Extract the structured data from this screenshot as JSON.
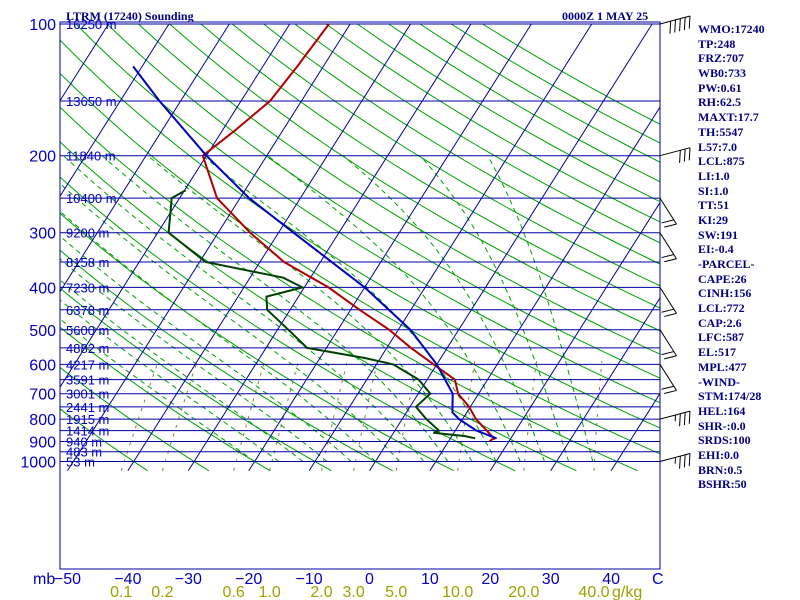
{
  "header": {
    "title": "LTRM (17240) Sounding",
    "time": "0000Z  1 MAY 25"
  },
  "indices": [
    "WMO:17240",
    "TP:248",
    "FRZ:707",
    "WB0:733",
    "PW:0.61",
    "RH:62.5",
    "MAXT:17.7",
    "TH:5547",
    "L57:7.0",
    "LCL:875",
    "LI:1.0",
    "SI:1.0",
    "TT:51",
    "KI:29",
    "SW:191",
    "EI:-0.4",
    "-PARCEL-",
    "CAPE:26",
    "CINH:156",
    "LCL:772",
    "CAP:2.6",
    "LFC:587",
    "EL:517",
    "MPL:477",
    "-WIND-",
    "STM:174/28",
    "HEL:164",
    "SHR-:0.0",
    "SRDS:100",
    "EHI:0.0",
    "BRN:0.5",
    "BSHR:50"
  ],
  "colors": {
    "isobar": "#0000a0",
    "isotherm": "#0000a0",
    "dry_adiabat": "#00a000",
    "moist_adiabat": "#00a000",
    "mixing_ratio": "#808040",
    "temperature": "#b00000",
    "dewpoint": "#004000",
    "parcel": "#0000c0",
    "wind": "#000000"
  },
  "chart_data": {
    "type": "skew-t",
    "title": "LTRM (17240) Sounding",
    "valid_time": "0000Z  1 MAY 25",
    "pressure_axis_unit": "mb",
    "pressure_levels": [
      100,
      200,
      300,
      400,
      500,
      600,
      700,
      800,
      900,
      1000
    ],
    "pressure_range": [
      1050,
      100
    ],
    "temperature_axis": {
      "ticks": [
        -50,
        -40,
        -30,
        -20,
        -10,
        0,
        10,
        20,
        30,
        40
      ],
      "unit": "C"
    },
    "mixing_ratio_axis": {
      "labels": [
        "0.1",
        "0.2",
        "0.6",
        "1.0",
        "2.0",
        "3.0",
        "5.0",
        "10.0",
        "20.0",
        "40.0"
      ],
      "values": [
        0.1,
        0.2,
        0.6,
        1.0,
        2.0,
        3.0,
        5.0,
        10.0,
        20.0,
        40.0
      ],
      "unit": "g/kg"
    },
    "height_labels": [
      {
        "p": 100,
        "label": "16250 m"
      },
      {
        "p": 150,
        "label": "13650 m"
      },
      {
        "p": 200,
        "label": "11840 m"
      },
      {
        "p": 250,
        "label": "10400 m"
      },
      {
        "p": 300,
        "label": "9200 m"
      },
      {
        "p": 350,
        "label": "8158 m"
      },
      {
        "p": 400,
        "label": "7230 m"
      },
      {
        "p": 450,
        "label": "6378 m"
      },
      {
        "p": 500,
        "label": "5600 m"
      },
      {
        "p": 550,
        "label": "4882 m"
      },
      {
        "p": 600,
        "label": "4217 m"
      },
      {
        "p": 650,
        "label": "3591 m"
      },
      {
        "p": 700,
        "label": "3001 m"
      },
      {
        "p": 750,
        "label": "2441 m"
      },
      {
        "p": 800,
        "label": "1915 m"
      },
      {
        "p": 850,
        "label": "1414 m"
      },
      {
        "p": 900,
        "label": "940 m"
      },
      {
        "p": 950,
        "label": "483 m"
      },
      {
        "p": 1000,
        "label": "53 m"
      }
    ],
    "series": [
      {
        "name": "Temperature",
        "points": [
          {
            "p": 100,
            "t": -53.5
          },
          {
            "p": 125,
            "t": -54.3
          },
          {
            "p": 150,
            "t": -55.2
          },
          {
            "p": 175,
            "t": -57.9
          },
          {
            "p": 200,
            "t": -60.6
          },
          {
            "p": 250,
            "t": -53.8
          },
          {
            "p": 300,
            "t": -44.7
          },
          {
            "p": 350,
            "t": -36.0
          },
          {
            "p": 400,
            "t": -26.0
          },
          {
            "p": 450,
            "t": -18.5
          },
          {
            "p": 500,
            "t": -11.5
          },
          {
            "p": 550,
            "t": -6.0
          },
          {
            "p": 600,
            "t": -0.5
          },
          {
            "p": 650,
            "t": 4.6
          },
          {
            "p": 700,
            "t": 6.6
          },
          {
            "p": 750,
            "t": 9.8
          },
          {
            "p": 800,
            "t": 12.2
          },
          {
            "p": 850,
            "t": 15.2
          },
          {
            "p": 875,
            "t": 16.6
          },
          {
            "p": 885,
            "t": 17.4
          },
          {
            "p": 890,
            "t": 17.0
          },
          {
            "p": 900,
            "t": 16.8
          }
        ]
      },
      {
        "name": "Dewpoint",
        "points": [
          {
            "p": 240,
            "t": -59.8
          },
          {
            "p": 250,
            "t": -61.3
          },
          {
            "p": 300,
            "t": -58.2
          },
          {
            "p": 350,
            "t": -49.0
          },
          {
            "p": 380,
            "t": -34.5
          },
          {
            "p": 400,
            "t": -30.3
          },
          {
            "p": 420,
            "t": -35.3
          },
          {
            "p": 450,
            "t": -33.8
          },
          {
            "p": 500,
            "t": -28.2
          },
          {
            "p": 550,
            "t": -23.2
          },
          {
            "p": 580,
            "t": -12.6
          },
          {
            "p": 600,
            "t": -7.2
          },
          {
            "p": 650,
            "t": -1.4
          },
          {
            "p": 700,
            "t": 2.0
          },
          {
            "p": 750,
            "t": 1.0
          },
          {
            "p": 800,
            "t": 4.0
          },
          {
            "p": 850,
            "t": 7.3
          },
          {
            "p": 860,
            "t": 6.6
          },
          {
            "p": 875,
            "t": 12.2
          },
          {
            "p": 885,
            "t": 14.1
          }
        ]
      },
      {
        "name": "Parcel",
        "points": [
          {
            "p": 885,
            "t": 17.6
          },
          {
            "p": 850,
            "t": 13.5
          },
          {
            "p": 800,
            "t": 9.4
          },
          {
            "p": 772,
            "t": 7.6
          },
          {
            "p": 700,
            "t": 5.7
          },
          {
            "p": 600,
            "t": 0.0
          },
          {
            "p": 500,
            "t": -8.0
          },
          {
            "p": 400,
            "t": -20.0
          },
          {
            "p": 300,
            "t": -37.5
          },
          {
            "p": 250,
            "t": -48.5
          },
          {
            "p": 200,
            "t": -60.0
          },
          {
            "p": 150,
            "t": -73.5
          },
          {
            "p": 125,
            "t": -81.5
          }
        ]
      }
    ],
    "winds": [
      {
        "p": 100,
        "dir": 270,
        "kt": 50
      },
      {
        "p": 200,
        "dir": 270,
        "kt": 30
      },
      {
        "p": 250,
        "dir": 240,
        "kt": 20
      },
      {
        "p": 300,
        "dir": 240,
        "kt": 20
      },
      {
        "p": 400,
        "dir": 240,
        "kt": 20
      },
      {
        "p": 500,
        "dir": 240,
        "kt": 20
      },
      {
        "p": 600,
        "dir": 240,
        "kt": 20
      },
      {
        "p": 800,
        "dir": 270,
        "kt": 35
      },
      {
        "p": 1000,
        "dir": 270,
        "kt": 35
      }
    ]
  }
}
